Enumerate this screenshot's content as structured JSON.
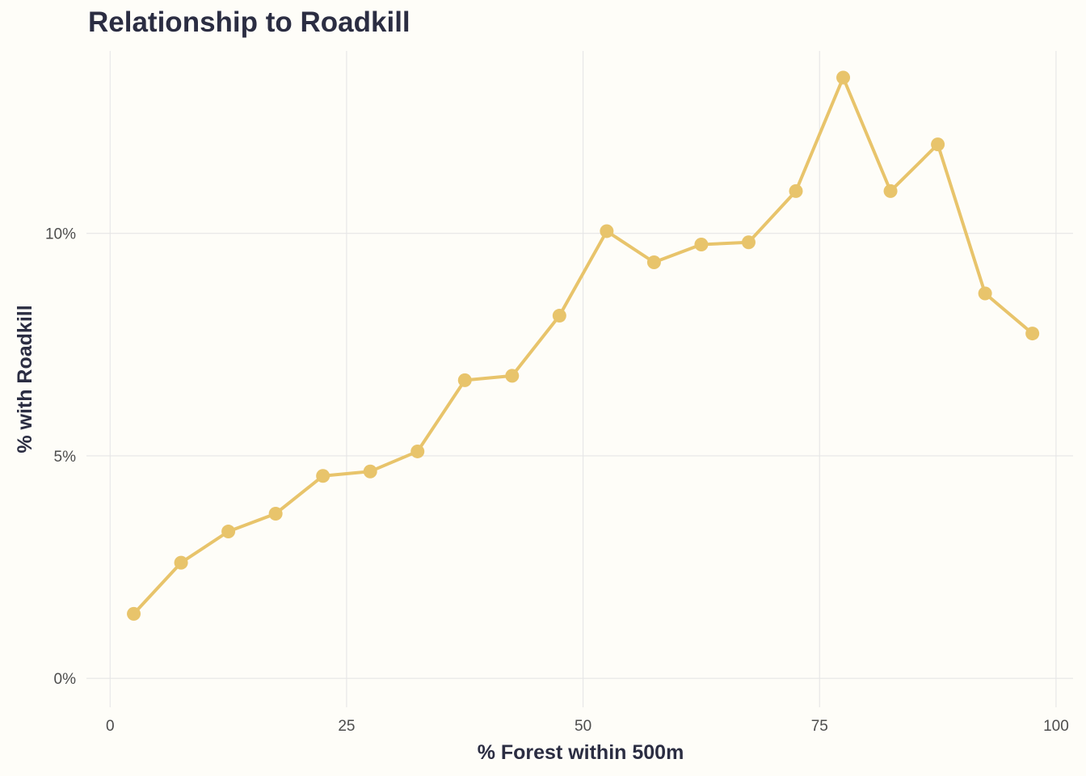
{
  "chart_data": {
    "type": "line",
    "title": "Relationship to Roadkill",
    "xlabel": "% Forest within 500m",
    "ylabel": "% with Roadkill",
    "xlim": [
      -2.5,
      101.8
    ],
    "ylim": [
      -0.65,
      14.1
    ],
    "x_ticks": [
      0,
      25,
      50,
      75,
      100
    ],
    "x_tick_labels": [
      "0",
      "25",
      "50",
      "75",
      "100"
    ],
    "y_ticks": [
      0,
      5,
      10
    ],
    "y_tick_labels": [
      "0%",
      "5%",
      "10%"
    ],
    "grid": true,
    "legend": "none",
    "color": "#e8c46b",
    "series": [
      {
        "x": [
          2.5,
          7.5,
          12.5,
          17.5,
          22.5,
          27.5,
          32.5,
          37.5,
          42.5,
          47.5,
          52.5,
          57.5,
          62.5,
          67.5,
          72.5,
          77.5,
          82.5,
          87.5,
          92.5,
          97.5
        ],
        "values": [
          1.45,
          2.6,
          3.3,
          3.7,
          4.55,
          4.65,
          5.1,
          6.7,
          6.8,
          8.15,
          10.05,
          9.35,
          9.75,
          9.8,
          10.95,
          13.5,
          10.95,
          12.0,
          8.65,
          7.75
        ]
      }
    ]
  }
}
